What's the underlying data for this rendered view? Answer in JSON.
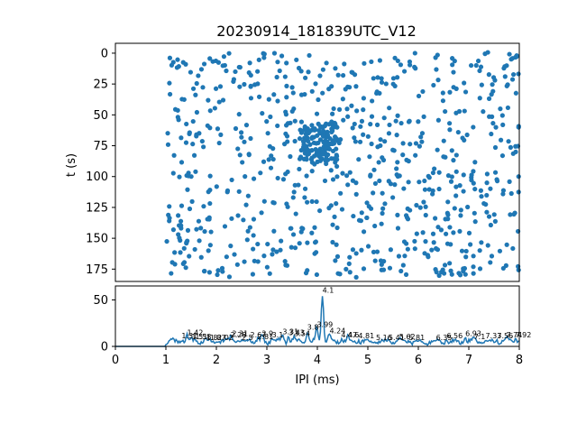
{
  "chart_data": [
    {
      "type": "scatter",
      "title": "20230914_181839UTC_V12",
      "xlabel": "",
      "ylabel": "t (s)",
      "xlim": [
        0,
        8
      ],
      "ylim": [
        185,
        -8
      ],
      "y_inverted": true,
      "y_ticks": [
        0,
        25,
        50,
        75,
        100,
        125,
        150,
        175
      ],
      "marker_color": "#1f77b4",
      "t_bands": [
        3,
        10,
        18,
        27,
        35,
        48,
        58,
        68,
        75,
        85,
        97,
        103,
        113,
        124,
        133,
        143,
        155,
        162,
        172,
        178
      ],
      "density_note": "IPI points between 1.0 and 8.0 ms per time band; dense cluster near 4.0-4.3 ms around t=60-85 s"
    },
    {
      "type": "line",
      "xlabel": "IPI (ms)",
      "ylabel": "",
      "xlim": [
        0,
        8
      ],
      "ylim": [
        0,
        65
      ],
      "x_ticks": [
        0,
        1,
        2,
        3,
        4,
        5,
        6,
        7,
        8
      ],
      "y_ticks": [
        0,
        50
      ],
      "line_color": "#1f77b4",
      "main_peak": {
        "x": 4.1,
        "y": 56
      },
      "peaks": [
        {
          "label": "1.31",
          "x": 1.31,
          "y": 7
        },
        {
          "label": "1.42",
          "x": 1.42,
          "y": 10
        },
        {
          "label": "1.51",
          "x": 1.51,
          "y": 6
        },
        {
          "label": "1.58",
          "x": 1.58,
          "y": 6
        },
        {
          "label": "1.8",
          "x": 1.8,
          "y": 5
        },
        {
          "label": "1.87",
          "x": 1.87,
          "y": 5
        },
        {
          "label": "2.02",
          "x": 2.02,
          "y": 5
        },
        {
          "label": "2.28",
          "x": 2.28,
          "y": 8
        },
        {
          "label": "2.31",
          "x": 2.31,
          "y": 9
        },
        {
          "label": "2.5",
          "x": 2.5,
          "y": 5
        },
        {
          "label": "2.67",
          "x": 2.67,
          "y": 8
        },
        {
          "label": "2.81",
          "x": 2.81,
          "y": 6
        },
        {
          "label": "2.9",
          "x": 2.9,
          "y": 9
        },
        {
          "label": "3.1",
          "x": 3.1,
          "y": 8
        },
        {
          "label": "3.31",
          "x": 3.31,
          "y": 11
        },
        {
          "label": "3.43",
          "x": 3.43,
          "y": 10
        },
        {
          "label": "3.54",
          "x": 3.54,
          "y": 9
        },
        {
          "label": "3.8",
          "x": 3.8,
          "y": 16
        },
        {
          "label": "3.99",
          "x": 3.99,
          "y": 19
        },
        {
          "label": "4.1",
          "x": 4.1,
          "y": 56
        },
        {
          "label": "4.24",
          "x": 4.24,
          "y": 12
        },
        {
          "label": "4.47",
          "x": 4.47,
          "y": 8
        },
        {
          "label": "4.6",
          "x": 4.6,
          "y": 8
        },
        {
          "label": "4.81",
          "x": 4.81,
          "y": 7
        },
        {
          "label": "5.16",
          "x": 5.16,
          "y": 5
        },
        {
          "label": "5.41",
          "x": 5.41,
          "y": 5
        },
        {
          "label": "5.62",
          "x": 5.62,
          "y": 6
        },
        {
          "label": "5.81",
          "x": 5.81,
          "y": 5
        },
        {
          "label": "6.35",
          "x": 6.35,
          "y": 5
        },
        {
          "label": "6.56",
          "x": 6.56,
          "y": 7
        },
        {
          "label": "6.93",
          "x": 6.93,
          "y": 9
        },
        {
          "label": "7.1",
          "x": 7.1,
          "y": 6
        },
        {
          "label": "7.33",
          "x": 7.33,
          "y": 7
        },
        {
          "label": "7.56",
          "x": 7.56,
          "y": 7
        },
        {
          "label": "7.74",
          "x": 7.74,
          "y": 8
        },
        {
          "label": "7.92",
          "x": 7.92,
          "y": 8
        }
      ]
    }
  ]
}
